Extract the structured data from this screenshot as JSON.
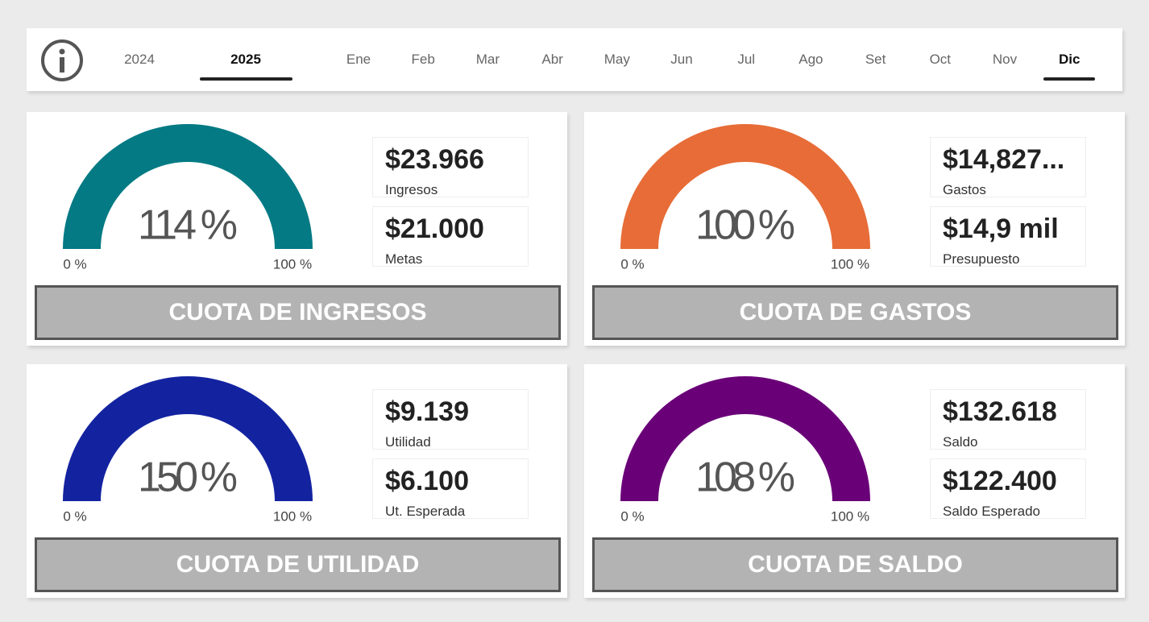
{
  "header": {
    "years": [
      "2024",
      "2025"
    ],
    "months": [
      "Ene",
      "Feb",
      "Mar",
      "Abr",
      "May",
      "Jun",
      "Jul",
      "Ago",
      "Set",
      "Oct",
      "Nov",
      "Dic"
    ]
  },
  "cards": [
    {
      "title": "CUOTA DE INGRESOS",
      "gauge": {
        "label": "114 %",
        "min_label": "0 %",
        "max_label": "100 %",
        "color": "#037a84"
      },
      "kpis": [
        {
          "value": "$23.966",
          "label": "Ingresos"
        },
        {
          "value": "$21.000",
          "label": "Metas"
        }
      ]
    },
    {
      "title": "CUOTA DE GASTOS",
      "gauge": {
        "label": "100 %",
        "min_label": "0 %",
        "max_label": "100 %",
        "color": "#e76c37"
      },
      "kpis": [
        {
          "value": "$14,827...",
          "label": "Gastos"
        },
        {
          "value": "$14,9 mil",
          "label": "Presupuesto"
        }
      ]
    },
    {
      "title": "CUOTA DE UTILIDAD",
      "gauge": {
        "label": "150 %",
        "min_label": "0 %",
        "max_label": "100 %",
        "color": "#1323a0"
      },
      "kpis": [
        {
          "value": "$9.139",
          "label": "Utilidad"
        },
        {
          "value": "$6.100",
          "label": "Ut. Esperada"
        }
      ]
    },
    {
      "title": "CUOTA DE SALDO",
      "gauge": {
        "label": "108 %",
        "min_label": "0 %",
        "max_label": "100 %",
        "color": "#6a0078"
      },
      "kpis": [
        {
          "value": "$132.618",
          "label": "Saldo"
        },
        {
          "value": "$122.400",
          "label": "Saldo Esperado"
        }
      ]
    }
  ]
}
